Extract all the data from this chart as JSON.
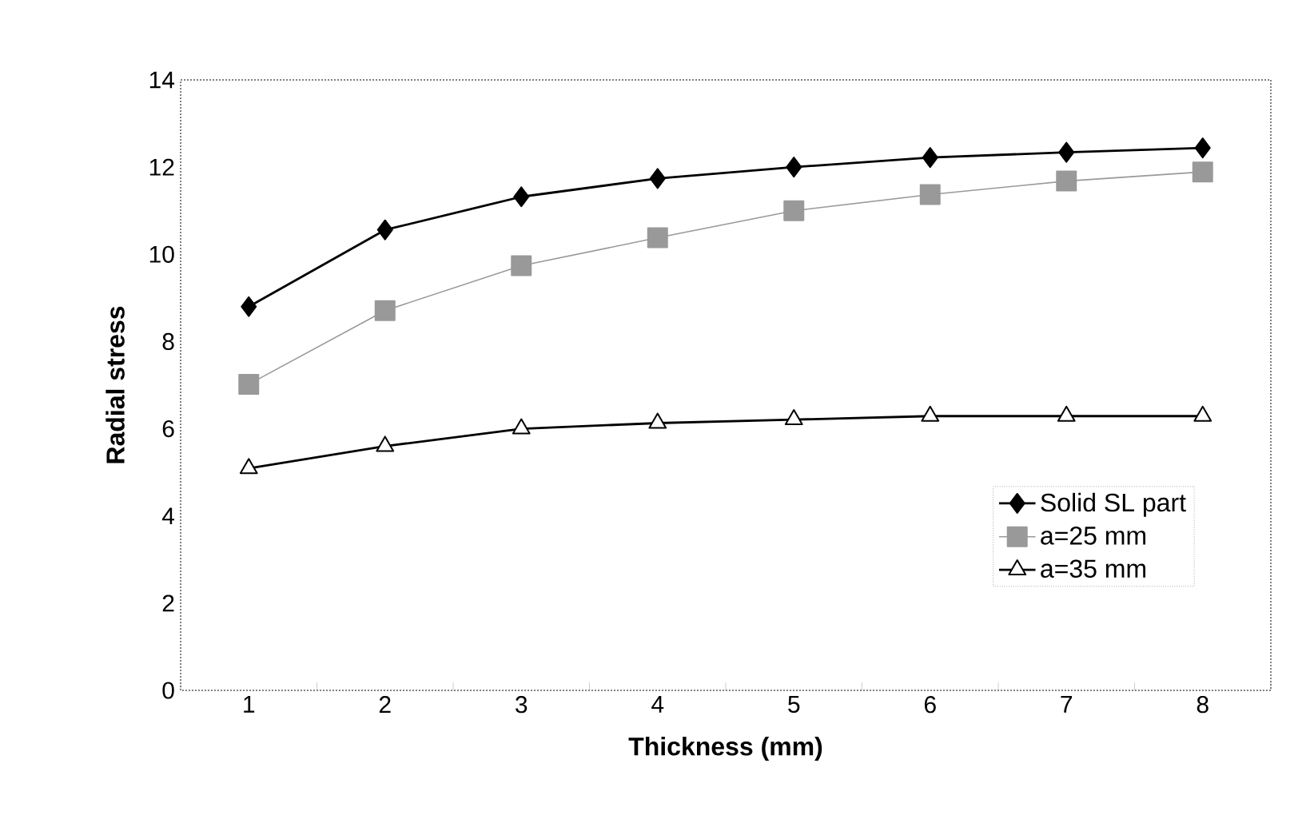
{
  "chart_data": {
    "type": "line",
    "xlabel": "Thickness (mm)",
    "ylabel": "Radial stress",
    "categories": [
      "1",
      "2",
      "3",
      "4",
      "5",
      "6",
      "7",
      "8"
    ],
    "series": [
      {
        "name": "Solid SL part",
        "color": "#000000",
        "marker": "diamond",
        "values": [
          8.8,
          10.56,
          11.32,
          11.74,
          12.0,
          12.22,
          12.34,
          12.44
        ]
      },
      {
        "name": "a=25 mm",
        "color": "#999999",
        "marker": "square",
        "values": [
          7.02,
          8.71,
          9.74,
          10.38,
          11.0,
          11.37,
          11.68,
          11.89
        ]
      },
      {
        "name": "a=35 mm",
        "color": "#000000",
        "marker": "triangle",
        "values": [
          5.09,
          5.6,
          6.0,
          6.13,
          6.21,
          6.29,
          6.29,
          6.29
        ]
      }
    ],
    "ylim": [
      0,
      14
    ],
    "yticks": [
      0,
      2,
      4,
      6,
      8,
      10,
      12,
      14
    ],
    "grid": false,
    "legend": "bottom right",
    "line_style": "solid"
  }
}
